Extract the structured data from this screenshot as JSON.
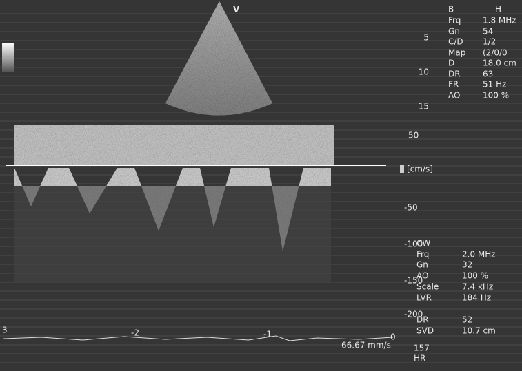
{
  "sector_label": "V",
  "b_mode": {
    "rows": [
      [
        "B",
        "H"
      ],
      [
        "Frq",
        "1.8 MHz"
      ],
      [
        "Gn",
        "54"
      ],
      [
        "C/D",
        "1/2"
      ],
      [
        "Map",
        "(2/0/0"
      ],
      [
        "D",
        "18.0 cm"
      ],
      [
        "DR",
        "63"
      ],
      [
        "FR",
        "51 Hz"
      ],
      [
        "AO",
        "100 %"
      ]
    ]
  },
  "depth_scale": [
    "5",
    "10",
    "15"
  ],
  "velocity_scale": [
    "50",
    "-50",
    "-100",
    "-150",
    "-200"
  ],
  "velocity_unit": "[cm/s]",
  "cw": {
    "title": "CW",
    "rows": [
      [
        "Frq",
        "2.0 MHz"
      ],
      [
        "Gn",
        "32"
      ],
      [
        "AO",
        "100 %"
      ],
      [
        "Scale",
        "7.4 kHz"
      ],
      [
        "LVR",
        "184 Hz"
      ],
      [
        "DR",
        "52"
      ],
      [
        "SVD",
        "10.7 cm"
      ]
    ]
  },
  "time_scale": [
    "3",
    "-2",
    "-1",
    "0"
  ],
  "sweep_speed": "66.67 mm/s",
  "heart_rate": {
    "value": "157",
    "label": "HR"
  }
}
